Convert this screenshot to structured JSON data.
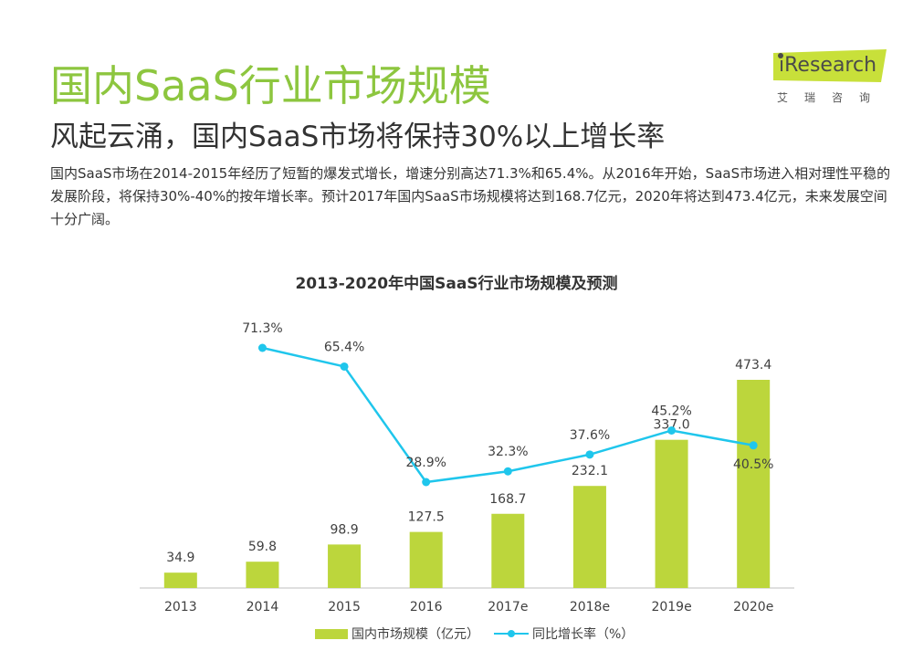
{
  "header": {
    "title": "国内SaaS行业市场规模",
    "subtitle": "风起云涌，国内SaaS市场将保持30%以上增长率",
    "body": "国内SaaS市场在2014-2015年经历了短暂的爆发式增长，增速分别高达71.3%和65.4%。从2016年开始，SaaS市场进入相对理性平稳的发展阶段，将保持30%-40%的按年增长率。预计2017年国内SaaS市场规模将达到168.7亿元，2020年将达到473.4亿元，未来发展空间十分广阔。"
  },
  "logo": {
    "brand": "iResearch",
    "sub": "艾瑞咨询",
    "colors": {
      "badge": "#c8e03a",
      "text": "#4a4a4a"
    }
  },
  "chart_data": {
    "type": "bar",
    "title": "2013-2020年中国SaaS行业市场规模及预测",
    "categories": [
      "2013",
      "2014",
      "2015",
      "2016",
      "2017e",
      "2018e",
      "2019e",
      "2020e"
    ],
    "series": [
      {
        "name": "国内市场规模（亿元）",
        "type": "bar",
        "color": "#bcd63c",
        "values": [
          34.9,
          59.8,
          98.9,
          127.5,
          168.7,
          232.1,
          337.0,
          473.4
        ],
        "labels": [
          "34.9",
          "59.8",
          "98.9",
          "127.5",
          "168.7",
          "232.1",
          "337.0",
          "473.4"
        ]
      },
      {
        "name": "同比增长率（%）",
        "type": "line",
        "color": "#1fc6ec",
        "values": [
          null,
          71.3,
          65.4,
          28.9,
          32.3,
          37.6,
          45.2,
          40.5
        ],
        "labels": [
          "",
          "71.3%",
          "65.4%",
          "28.9%",
          "32.3%",
          "37.6%",
          "45.2%",
          "40.5%"
        ]
      }
    ],
    "bar_ylim": [
      0,
      500
    ],
    "line_ylim": [
      0,
      80
    ],
    "grid": false,
    "legend_position": "bottom"
  }
}
